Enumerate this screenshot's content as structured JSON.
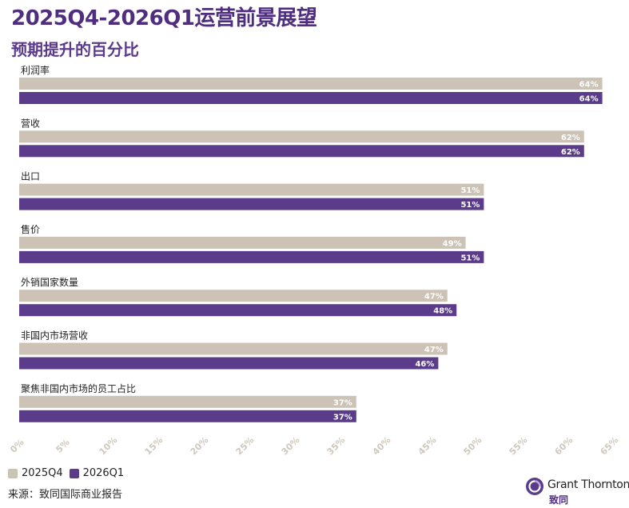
{
  "header": {
    "title": "2025Q4-2026Q1运营前景展望",
    "subtitle": "预期提升的百分比"
  },
  "colors": {
    "series_2025Q4": "#ccc3b6",
    "series_2026Q1": "#5b3c8a",
    "title": "#4f2d7f",
    "axis_tick": "#cfc8bd"
  },
  "chart_data": {
    "type": "bar",
    "orientation": "horizontal",
    "title": "预期提升的百分比",
    "categories": [
      "利润率",
      "营收",
      "出口",
      "售价",
      "外销国家数量",
      "非国内市场营收",
      "聚焦非国内市场的员工占比"
    ],
    "series": [
      {
        "name": "2025Q4",
        "values": [
          64,
          62,
          51,
          49,
          47,
          47,
          37
        ]
      },
      {
        "name": "2026Q1",
        "values": [
          64,
          62,
          51,
          51,
          48,
          46,
          37
        ]
      }
    ],
    "value_labels": [
      [
        "64%",
        "62%",
        "51%",
        "49%",
        "47%",
        "47%",
        "37%"
      ],
      [
        "64%",
        "62%",
        "51%",
        "51%",
        "48%",
        "46%",
        "37%"
      ]
    ],
    "xlim": [
      0,
      65
    ],
    "xticks": [
      0,
      5,
      10,
      15,
      20,
      25,
      30,
      35,
      40,
      45,
      50,
      55,
      60,
      65
    ],
    "xtick_labels": [
      "0%",
      "5%",
      "10%",
      "15%",
      "20%",
      "25%",
      "30%",
      "35%",
      "40%",
      "45%",
      "50%",
      "55%",
      "60%",
      "65%"
    ],
    "legend_position": "bottom-left"
  },
  "legend": {
    "items": [
      {
        "label": "2025Q4",
        "color": "#ccc3b6"
      },
      {
        "label": "2026Q1",
        "color": "#5b3c8a"
      }
    ]
  },
  "footer": {
    "source": "来源：致同国际商业报告",
    "brand_name": "Grant Thornton",
    "brand_cn": "致同"
  }
}
